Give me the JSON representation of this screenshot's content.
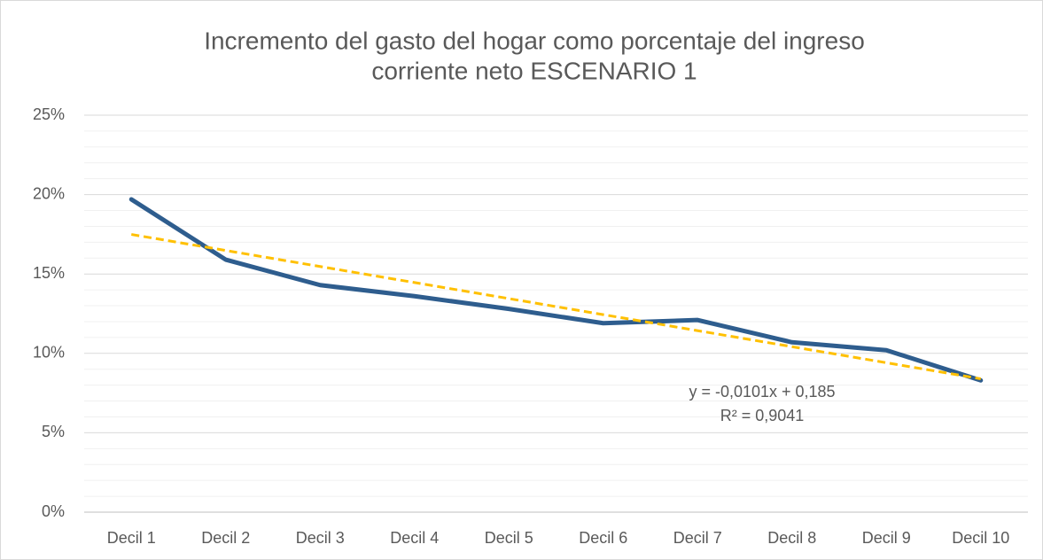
{
  "chart_data": {
    "type": "line",
    "title": [
      "Incremento del gasto del hogar como porcentaje del ingreso",
      "corriente neto ESCENARIO 1"
    ],
    "categories": [
      "Decil 1",
      "Decil 2",
      "Decil 3",
      "Decil 4",
      "Decil 5",
      "Decil 6",
      "Decil 7",
      "Decil 8",
      "Decil 9",
      "Decil 10"
    ],
    "series": [
      {
        "color": "#2e5d8e",
        "values": [
          19.7,
          15.9,
          14.3,
          13.6,
          12.8,
          11.9,
          12.1,
          10.7,
          10.2,
          8.3
        ]
      }
    ],
    "ylim": [
      0,
      25
    ],
    "yticks": [
      {
        "value": 0,
        "label": "0%"
      },
      {
        "value": 5,
        "label": "5%"
      },
      {
        "value": 10,
        "label": "10%"
      },
      {
        "value": 15,
        "label": "15%"
      },
      {
        "value": 20,
        "label": "20%"
      },
      {
        "value": 25,
        "label": "25%"
      }
    ],
    "minor_yticks": [
      1,
      2,
      3,
      4,
      6,
      7,
      8,
      9,
      11,
      12,
      13,
      14,
      16,
      17,
      18,
      19,
      21,
      22,
      23,
      24
    ],
    "grid": true,
    "trendline": {
      "color": "#ffc000",
      "slope": -1.01,
      "intercept": 18.5,
      "label": [
        "y = -0,0101x + 0,185",
        "R² = 0,9041"
      ]
    }
  }
}
